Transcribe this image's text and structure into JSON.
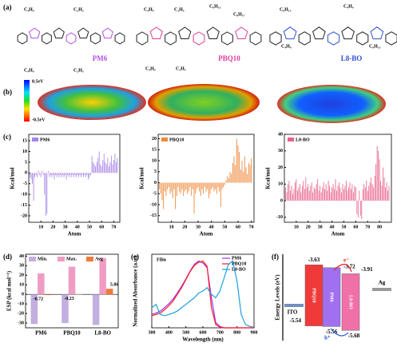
{
  "panel_labels": [
    "(a)",
    "(b)",
    "(c)",
    "(d)",
    "(e)",
    "(f)"
  ],
  "molecules": [
    {
      "name": "PM6",
      "color": "#b050e0",
      "substituents": [
        "C₄H₉",
        "C₂H₅",
        "C₄H₉",
        "C₂H₅"
      ]
    },
    {
      "name": "PBQ10",
      "color": "#e03a9a",
      "substituents": [
        "C₄H₉",
        "C₂H₅",
        "C₆H₁₃",
        "C₈H₁₇",
        "C₄H₉",
        "C₂H₅"
      ]
    },
    {
      "name": "L8-BO",
      "color": "#2f4fd0",
      "substituents": [
        "C₆H₁₃",
        "C₄H₉",
        "C₄H₉",
        "C₆H₁₃"
      ]
    }
  ],
  "esp_scale": {
    "max": "0.5eV",
    "min": "-0.5eV"
  },
  "chart_data": [
    {
      "type": "bar",
      "xlabel": "Atom",
      "ylabel": "Kcal/mol",
      "xlim": [
        0,
        75
      ],
      "ylim": [
        -23,
        18
      ],
      "xticks": [
        10,
        20,
        30,
        40,
        50,
        60,
        70
      ],
      "yticks": [
        -20,
        -15,
        -10,
        -5,
        0,
        5,
        10,
        15
      ],
      "x": [
        1,
        2,
        3,
        4,
        5,
        6,
        7,
        8,
        9,
        10,
        11,
        12,
        13,
        14,
        15,
        16,
        17,
        18,
        19,
        20,
        21,
        22,
        23,
        24,
        25,
        26,
        27,
        28,
        29,
        30,
        31,
        32,
        33,
        34,
        35,
        36,
        37,
        38,
        39,
        40,
        41,
        42,
        43,
        44,
        45,
        46,
        47,
        48,
        49,
        50,
        51,
        52,
        53,
        54,
        55,
        56,
        57,
        58,
        59,
        60,
        61,
        62,
        63,
        64,
        65,
        66,
        67,
        68,
        69,
        70,
        71,
        72,
        73
      ],
      "series": [
        {
          "name": "PM6",
          "color": "#a784e8",
          "values": [
            -2,
            -3,
            -5,
            -13,
            -2,
            -1,
            -2,
            1,
            -1,
            -2,
            1,
            -1,
            -10,
            -20,
            -19,
            1,
            -2,
            -1,
            -2,
            -1,
            -3,
            -1,
            -2,
            -1,
            -2,
            -1,
            -2,
            -1,
            -2,
            -1,
            -3,
            -1,
            -2,
            -1,
            -2,
            -1,
            -2,
            -1,
            -2,
            -1,
            -2,
            -1,
            -2,
            -1,
            -2,
            -1,
            -2,
            -1,
            -3,
            -2,
            -1,
            8,
            5,
            4,
            3,
            5,
            7,
            10,
            4,
            3,
            6,
            9,
            5,
            4,
            7,
            3,
            5,
            8,
            4,
            6,
            9,
            5,
            7
          ]
        }
      ]
    },
    {
      "type": "bar",
      "xlabel": "Atom",
      "ylabel": "Kcal/mol",
      "xlim": [
        0,
        72
      ],
      "ylim": [
        -18,
        22
      ],
      "xticks": [
        10,
        20,
        30,
        40,
        50,
        60,
        70
      ],
      "yticks": [
        -15,
        -10,
        -5,
        0,
        5,
        10,
        15,
        20
      ],
      "x": [
        1,
        2,
        3,
        4,
        5,
        6,
        7,
        8,
        9,
        10,
        11,
        12,
        13,
        14,
        15,
        16,
        17,
        18,
        19,
        20,
        21,
        22,
        23,
        24,
        25,
        26,
        27,
        28,
        29,
        30,
        31,
        32,
        33,
        34,
        35,
        36,
        37,
        38,
        39,
        40,
        41,
        42,
        43,
        44,
        45,
        46,
        47,
        48,
        49,
        50,
        51,
        52,
        53,
        54,
        55,
        56,
        57,
        58,
        59,
        60,
        61,
        62,
        63,
        64,
        65,
        66,
        67,
        68,
        69,
        70
      ],
      "series": [
        {
          "name": "PBQ10",
          "color": "#f08a3c",
          "values": [
            -3,
            -5,
            -8,
            -12,
            -4,
            -6,
            -3,
            -2,
            -5,
            -4,
            -7,
            -3,
            -12,
            -6,
            -2,
            -4,
            -5,
            -3,
            -6,
            -4,
            -3,
            -5,
            -4,
            -2,
            -6,
            -3,
            -14,
            -5,
            -3,
            -2,
            -4,
            -6,
            -3,
            -5,
            -2,
            -4,
            -3,
            -7,
            -5,
            -3,
            -2,
            -4,
            -3,
            -5,
            -2,
            -4,
            -11,
            -3,
            -2,
            -1,
            1,
            3,
            2,
            5,
            4,
            9,
            12,
            8,
            20,
            17,
            14,
            6,
            10,
            5,
            12,
            7,
            4,
            9,
            8,
            11
          ]
        }
      ]
    },
    {
      "type": "bar",
      "xlabel": "Atom",
      "ylabel": "Kcal/mol",
      "xlim": [
        0,
        90
      ],
      "ylim": [
        -13,
        40
      ],
      "xticks": [
        10,
        20,
        30,
        40,
        50,
        60,
        70,
        80
      ],
      "yticks": [
        -10,
        0,
        10,
        20,
        30,
        40
      ],
      "x": [
        1,
        2,
        3,
        4,
        5,
        6,
        7,
        8,
        9,
        10,
        11,
        12,
        13,
        14,
        15,
        16,
        17,
        18,
        19,
        20,
        21,
        22,
        23,
        24,
        25,
        26,
        27,
        28,
        29,
        30,
        31,
        32,
        33,
        34,
        35,
        36,
        37,
        38,
        39,
        40,
        41,
        42,
        43,
        44,
        45,
        46,
        47,
        48,
        49,
        50,
        51,
        52,
        53,
        54,
        55,
        56,
        57,
        58,
        59,
        60,
        61,
        62,
        63,
        64,
        65,
        66,
        67,
        68,
        69,
        70,
        71,
        72,
        73,
        74,
        75,
        76,
        77,
        78,
        79,
        80,
        81,
        82,
        83,
        84,
        85,
        86,
        87,
        88
      ],
      "series": [
        {
          "name": "L8-BO",
          "color": "#e8608a",
          "values": [
            8,
            5,
            10,
            12,
            6,
            9,
            4,
            7,
            11,
            13,
            6,
            8,
            10,
            5,
            9,
            12,
            7,
            14,
            8,
            10,
            6,
            9,
            11,
            5,
            8,
            7,
            10,
            13,
            6,
            9,
            5,
            8,
            11,
            7,
            10,
            6,
            12,
            9,
            5,
            8,
            10,
            7,
            13,
            6,
            9,
            11,
            8,
            5,
            10,
            7,
            9,
            12,
            6,
            8,
            11,
            7,
            10,
            5,
            9,
            8,
            -8,
            -10,
            6,
            -9,
            -11,
            7,
            10,
            8,
            12,
            6,
            9,
            11,
            14,
            10,
            8,
            15,
            22,
            33,
            30,
            25,
            12,
            9,
            20,
            14,
            8,
            11,
            6,
            9
          ]
        }
      ]
    },
    {
      "type": "grouped_bar",
      "ylabel": "ESP (kcal mol⁻¹)",
      "categories": [
        "PM6",
        "PBQ10",
        "L8-BO"
      ],
      "ylim": [
        -35,
        42
      ],
      "yticks": [
        -30,
        -20,
        -10,
        0,
        10,
        20,
        30,
        40
      ],
      "series": [
        {
          "name": "Min.",
          "color": "#c3aee0",
          "values": [
            -31,
            -30,
            -32
          ]
        },
        {
          "name": "Max.",
          "color": "#ef9cc4",
          "values": [
            22,
            29,
            38
          ]
        },
        {
          "name": "Avg",
          "color": "#f07a3a",
          "values": [
            -0.72,
            -0.23,
            5.86
          ]
        }
      ]
    },
    {
      "type": "line",
      "xlabel": "Wavelength (nm)",
      "ylabel": "Normalized Absorbance (a.u.)",
      "annotation": "Film",
      "xlim": [
        300,
        900
      ],
      "ylim": [
        0,
        1.1
      ],
      "xticks": [
        300,
        400,
        500,
        600,
        700,
        800,
        900
      ],
      "x": [
        300,
        325,
        350,
        375,
        400,
        425,
        450,
        475,
        500,
        525,
        550,
        575,
        600,
        625,
        650,
        675,
        700,
        725,
        750,
        775,
        800,
        825,
        850,
        875,
        900
      ],
      "series": [
        {
          "name": "PM6",
          "color": "#9b30ff",
          "values": [
            0.2,
            0.22,
            0.25,
            0.3,
            0.36,
            0.43,
            0.52,
            0.62,
            0.73,
            0.85,
            0.95,
            1.0,
            0.97,
            0.9,
            0.45,
            0.08,
            0.02,
            0,
            0,
            0,
            0,
            0,
            0,
            0,
            0
          ]
        },
        {
          "name": "PBQ10",
          "color": "#ff2020",
          "values": [
            0.18,
            0.2,
            0.22,
            0.27,
            0.33,
            0.4,
            0.5,
            0.6,
            0.72,
            0.84,
            0.93,
            0.98,
            1.0,
            0.92,
            0.3,
            0.05,
            0.01,
            0,
            0,
            0,
            0,
            0,
            0,
            0,
            0
          ]
        },
        {
          "name": "L8-BO",
          "color": "#1ea0e0",
          "values": [
            0.3,
            0.35,
            0.2,
            0.18,
            0.2,
            0.22,
            0.25,
            0.3,
            0.35,
            0.4,
            0.45,
            0.52,
            0.55,
            0.6,
            0.5,
            0.45,
            0.55,
            0.75,
            0.95,
            1.0,
            0.7,
            0.2,
            0.05,
            0.02,
            0.01
          ]
        }
      ]
    },
    {
      "type": "energy",
      "ylabel": "Energy Levels (eV)",
      "ylim": [
        -6.0,
        -3.3
      ],
      "electrode_left": "ITO",
      "electrode_right": "Ag",
      "electron": "e⁻",
      "hole": "h⁺",
      "series": [
        {
          "name": "PBQ10",
          "color": "#f03a3a",
          "values": [
            -3.63,
            -5.54
          ]
        },
        {
          "name": "PM6",
          "color": "#a070f0",
          "values": [
            -3.72,
            -5.56
          ]
        },
        {
          "name": "L8-BO",
          "color": "#f070a8",
          "values": [
            -3.91,
            -5.68
          ]
        }
      ]
    }
  ]
}
